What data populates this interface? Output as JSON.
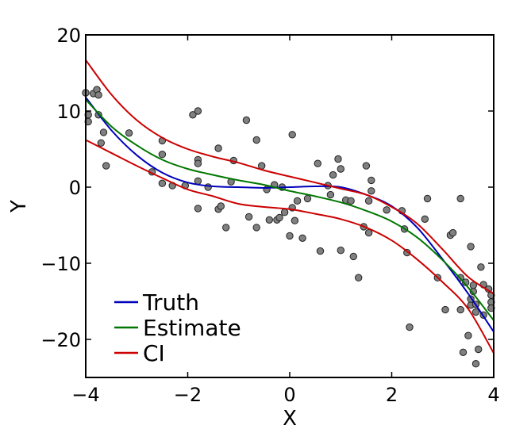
{
  "chart_data": {
    "type": "scatter",
    "title": "",
    "xlabel": "X",
    "ylabel": "Y",
    "xlim": [
      -4,
      4
    ],
    "ylim": [
      -25,
      20
    ],
    "xticks": [
      -4,
      -2,
      0,
      2,
      4
    ],
    "yticks": [
      -20,
      -10,
      0,
      10,
      20
    ],
    "x_tick_labels": [
      "−4",
      "−2",
      "0",
      "2",
      "4"
    ],
    "y_tick_labels": [
      "−20",
      "−10",
      "0",
      "10",
      "20"
    ],
    "grid": false,
    "legend_position": "bottom-left",
    "points_color": "#808080",
    "points": [
      [
        -4.0,
        12.4
      ],
      [
        -3.95,
        9.5
      ],
      [
        -3.95,
        8.6
      ],
      [
        -3.85,
        12.3
      ],
      [
        -3.78,
        12.8
      ],
      [
        -3.75,
        9.5
      ],
      [
        -3.75,
        12.1
      ],
      [
        -3.7,
        5.8
      ],
      [
        -3.65,
        7.2
      ],
      [
        -3.6,
        2.8
      ],
      [
        -3.15,
        7.1
      ],
      [
        -2.7,
        2.0
      ],
      [
        -2.5,
        6.1
      ],
      [
        -2.5,
        4.3
      ],
      [
        -2.5,
        0.5
      ],
      [
        -2.3,
        0.2
      ],
      [
        -2.05,
        0.2
      ],
      [
        -1.9,
        9.5
      ],
      [
        -1.8,
        10.0
      ],
      [
        -1.8,
        3.6
      ],
      [
        -1.8,
        3.1
      ],
      [
        -1.8,
        0.8
      ],
      [
        -1.8,
        -2.8
      ],
      [
        -1.6,
        0.0
      ],
      [
        -1.4,
        5.1
      ],
      [
        -1.4,
        -2.9
      ],
      [
        -1.35,
        -2.5
      ],
      [
        -1.25,
        -5.3
      ],
      [
        -1.15,
        0.7
      ],
      [
        -1.1,
        3.5
      ],
      [
        -0.85,
        8.8
      ],
      [
        -0.8,
        -3.9
      ],
      [
        -0.65,
        6.2
      ],
      [
        -0.65,
        -5.3
      ],
      [
        -0.55,
        2.8
      ],
      [
        -0.45,
        -0.3
      ],
      [
        -0.4,
        -4.3
      ],
      [
        -0.3,
        0.3
      ],
      [
        -0.25,
        -4.3
      ],
      [
        -0.2,
        -4.0
      ],
      [
        -0.15,
        0.0
      ],
      [
        -0.1,
        -3.3
      ],
      [
        0.0,
        -6.4
      ],
      [
        0.05,
        6.9
      ],
      [
        0.05,
        -2.7
      ],
      [
        0.1,
        -4.4
      ],
      [
        0.15,
        -1.8
      ],
      [
        0.25,
        -6.7
      ],
      [
        0.35,
        -1.5
      ],
      [
        0.55,
        3.1
      ],
      [
        0.6,
        -8.4
      ],
      [
        0.75,
        0.2
      ],
      [
        0.8,
        -1.0
      ],
      [
        0.85,
        1.6
      ],
      [
        0.95,
        3.7
      ],
      [
        1.0,
        2.4
      ],
      [
        1.0,
        -8.3
      ],
      [
        1.1,
        -1.7
      ],
      [
        1.2,
        -1.8
      ],
      [
        1.25,
        -9.1
      ],
      [
        1.35,
        -11.9
      ],
      [
        1.45,
        -5.2
      ],
      [
        1.5,
        2.8
      ],
      [
        1.55,
        -6.0
      ],
      [
        1.55,
        -1.8
      ],
      [
        1.6,
        0.9
      ],
      [
        1.6,
        -0.5
      ],
      [
        1.9,
        -3.0
      ],
      [
        2.2,
        -3.1
      ],
      [
        2.25,
        -5.5
      ],
      [
        2.3,
        -8.6
      ],
      [
        2.35,
        -18.4
      ],
      [
        2.65,
        -4.2
      ],
      [
        2.7,
        -1.5
      ],
      [
        2.9,
        -11.9
      ],
      [
        3.05,
        -16.1
      ],
      [
        3.15,
        -6.3
      ],
      [
        3.2,
        -6.0
      ],
      [
        3.35,
        -16.1
      ],
      [
        3.35,
        -11.9
      ],
      [
        3.35,
        -1.5
      ],
      [
        3.4,
        -21.7
      ],
      [
        3.45,
        -12.5
      ],
      [
        3.55,
        -15.5
      ],
      [
        3.55,
        -14.7
      ],
      [
        3.55,
        -7.8
      ],
      [
        3.6,
        -13.7
      ],
      [
        3.6,
        -12.9
      ],
      [
        3.65,
        -23.2
      ],
      [
        3.65,
        -16.4
      ],
      [
        3.65,
        -15.4
      ],
      [
        3.7,
        -21.3
      ],
      [
        3.75,
        -10.5
      ],
      [
        3.8,
        -16.8
      ],
      [
        3.8,
        -12.8
      ],
      [
        3.5,
        -19.5
      ],
      [
        3.9,
        -13.4
      ],
      [
        3.95,
        -15.1
      ],
      [
        3.95,
        -15.9
      ],
      [
        3.95,
        -14.2
      ]
    ],
    "series": [
      {
        "name": "Truth",
        "color": "#0000bb",
        "points": [
          [
            -4,
            11.8
          ],
          [
            -3.5,
            7.5
          ],
          [
            -3,
            4.2
          ],
          [
            -2.5,
            1.9
          ],
          [
            -2,
            0.6
          ],
          [
            -1.5,
            0.1
          ],
          [
            -1,
            0.0
          ],
          [
            -0.5,
            -0.1
          ],
          [
            0,
            0.0
          ],
          [
            0.5,
            0.1
          ],
          [
            1,
            0.0
          ],
          [
            1.5,
            -1.0
          ],
          [
            2,
            -2.5
          ],
          [
            2.5,
            -5.3
          ],
          [
            3,
            -9.5
          ],
          [
            3.5,
            -14.0
          ],
          [
            4,
            -19.0
          ]
        ]
      },
      {
        "name": "Estimate",
        "color": "#007700",
        "points": [
          [
            -4,
            11.5
          ],
          [
            -3.5,
            8.0
          ],
          [
            -3,
            5.5
          ],
          [
            -2.5,
            3.6
          ],
          [
            -2,
            2.4
          ],
          [
            -1.5,
            1.6
          ],
          [
            -1,
            0.9
          ],
          [
            -0.5,
            0.3
          ],
          [
            0,
            -0.5
          ],
          [
            0.5,
            -1.2
          ],
          [
            1,
            -2.0
          ],
          [
            1.5,
            -3.1
          ],
          [
            2,
            -4.5
          ],
          [
            2.5,
            -6.6
          ],
          [
            3,
            -9.6
          ],
          [
            3.5,
            -13.2
          ],
          [
            4,
            -17.5
          ]
        ]
      },
      {
        "name": "CI",
        "color": "#cc0000",
        "points": [
          [
            -4,
            16.7
          ],
          [
            -3.5,
            12.2
          ],
          [
            -3,
            8.8
          ],
          [
            -2.5,
            6.5
          ],
          [
            -2,
            5.0
          ],
          [
            -1.5,
            4.0
          ],
          [
            -1,
            3.2
          ],
          [
            -0.5,
            2.2
          ],
          [
            0,
            1.4
          ],
          [
            0.5,
            0.6
          ],
          [
            1,
            -0.2
          ],
          [
            1.5,
            -1.0
          ],
          [
            2,
            -2.6
          ],
          [
            2.5,
            -4.8
          ],
          [
            3,
            -8.2
          ],
          [
            3.5,
            -11.8
          ],
          [
            4,
            -14.0
          ]
        ]
      },
      {
        "name": "",
        "color": "#cc0000",
        "points": [
          [
            -4,
            6.2
          ],
          [
            -3.5,
            4.5
          ],
          [
            -3,
            2.8
          ],
          [
            -2.5,
            1.2
          ],
          [
            -2,
            -0.3
          ],
          [
            -1.5,
            -1.2
          ],
          [
            -1,
            -2.2
          ],
          [
            -0.5,
            -2.6
          ],
          [
            0,
            -2.9
          ],
          [
            0.5,
            -3.5
          ],
          [
            1,
            -4.2
          ],
          [
            1.5,
            -5.3
          ],
          [
            2,
            -7.0
          ],
          [
            2.5,
            -9.5
          ],
          [
            3,
            -12.5
          ],
          [
            3.5,
            -16.0
          ],
          [
            4,
            -21.8
          ]
        ]
      }
    ],
    "legend": [
      "Truth",
      "Estimate",
      "CI"
    ]
  }
}
